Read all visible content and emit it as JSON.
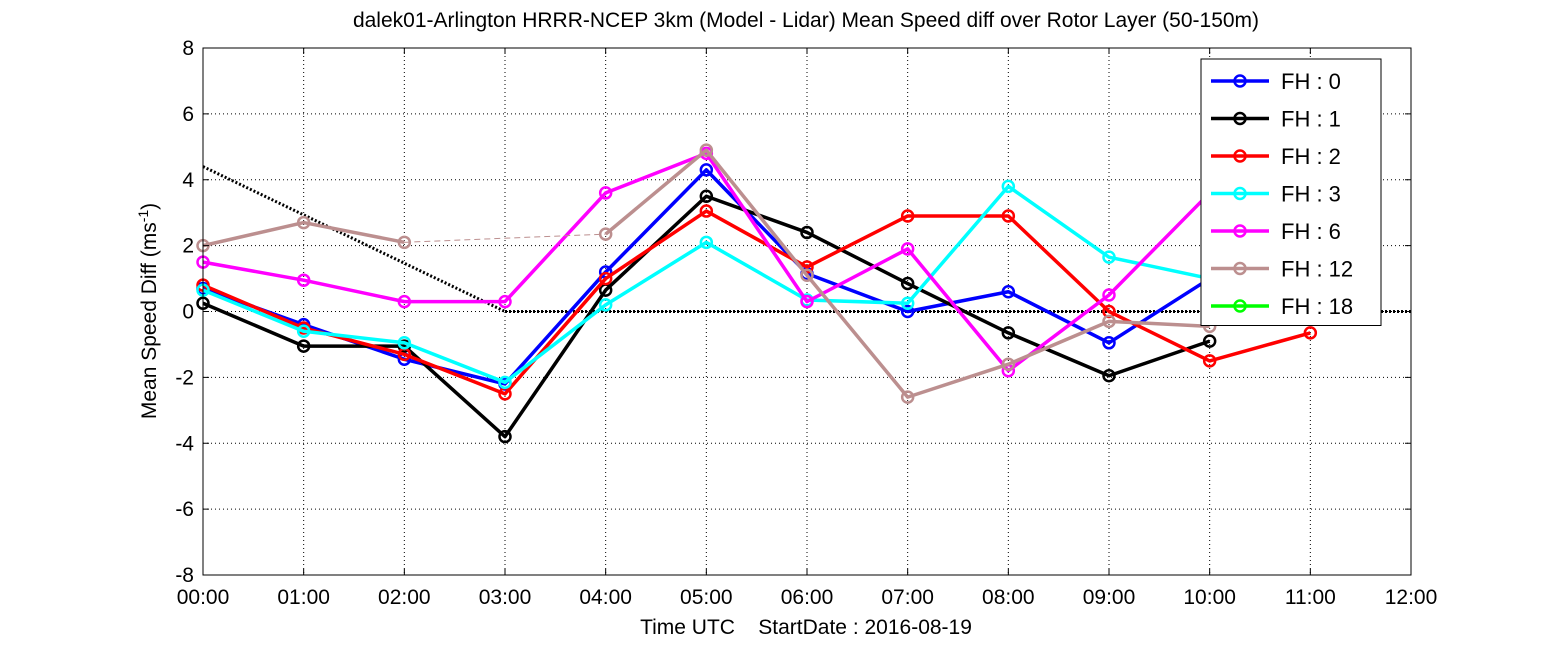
{
  "chart_data": {
    "type": "line",
    "title": "dalek01-Arlington HRRR-NCEP 3km (Model - Lidar) Mean Speed diff over Rotor Layer (50-150m)",
    "xlabel": "Time UTC    StartDate : 2016-08-19",
    "ylabel_main": "Mean Speed Diff (ms",
    "ylabel_sup": "-1",
    "ylabel_end": ")",
    "x_ticks": [
      "00:00",
      "01:00",
      "02:00",
      "03:00",
      "04:00",
      "05:00",
      "06:00",
      "07:00",
      "08:00",
      "09:00",
      "10:00",
      "11:00",
      "12:00"
    ],
    "y_ticks": [
      "-8",
      "-6",
      "-4",
      "-2",
      "0",
      "2",
      "4",
      "6",
      "8"
    ],
    "xlim": [
      0,
      12
    ],
    "ylim": [
      -8,
      8
    ],
    "grid": true,
    "legend_position": "top-right",
    "series": [
      {
        "name": "FH : 0",
        "color": "#0000ff",
        "points": [
          [
            0,
            0.7
          ],
          [
            1,
            -0.4
          ],
          [
            2,
            -1.45
          ],
          [
            3,
            -2.2
          ],
          [
            4,
            1.2
          ],
          [
            5,
            4.3
          ],
          [
            6,
            1.15
          ],
          [
            7,
            0.0
          ],
          [
            8,
            0.6
          ],
          [
            9,
            -0.95
          ],
          [
            10,
            1.0
          ]
        ]
      },
      {
        "name": "FH : 1",
        "color": "#000000",
        "points": [
          [
            0,
            0.25
          ],
          [
            1,
            -1.05
          ],
          [
            2,
            -1.05
          ],
          [
            3,
            -3.8
          ],
          [
            4,
            0.65
          ],
          [
            5,
            3.5
          ],
          [
            6,
            2.4
          ],
          [
            7,
            0.85
          ],
          [
            8,
            -0.65
          ],
          [
            9,
            -1.95
          ],
          [
            10,
            -0.9
          ]
        ]
      },
      {
        "name": "FH : 2",
        "color": "#ff0000",
        "points": [
          [
            0,
            0.8
          ],
          [
            1,
            -0.5
          ],
          [
            2,
            -1.3
          ],
          [
            3,
            -2.5
          ],
          [
            4,
            1.0
          ],
          [
            5,
            3.05
          ],
          [
            6,
            1.35
          ],
          [
            7,
            2.9
          ],
          [
            8,
            2.9
          ],
          [
            9,
            0.0
          ],
          [
            10,
            -1.5
          ],
          [
            11,
            -0.65
          ]
        ]
      },
      {
        "name": "FH : 3",
        "color": "#00ffff",
        "points": [
          [
            0,
            0.65
          ],
          [
            1,
            -0.6
          ],
          [
            2,
            -0.95
          ],
          [
            3,
            -2.15
          ],
          [
            4,
            0.2
          ],
          [
            5,
            2.1
          ],
          [
            6,
            0.35
          ],
          [
            7,
            0.25
          ],
          [
            8,
            3.8
          ],
          [
            9,
            1.65
          ],
          [
            10,
            1.0
          ]
        ]
      },
      {
        "name": "FH : 6",
        "color": "#ff00ff",
        "points": [
          [
            0,
            1.5
          ],
          [
            1,
            0.95
          ],
          [
            2,
            0.3
          ],
          [
            3,
            0.3
          ],
          [
            4,
            3.6
          ],
          [
            5,
            4.8
          ],
          [
            6,
            0.3
          ],
          [
            7,
            1.9
          ],
          [
            8,
            -1.8
          ],
          [
            9,
            0.5
          ],
          [
            10,
            3.6
          ]
        ]
      },
      {
        "name": "FH : 12",
        "color": "#bc8f8f",
        "points": [
          [
            0,
            2.0
          ],
          [
            1,
            2.7
          ],
          [
            2,
            2.1
          ],
          [
            4,
            2.35
          ],
          [
            5,
            4.9
          ],
          [
            6,
            1.1
          ],
          [
            7,
            -2.6
          ],
          [
            8,
            -1.6
          ],
          [
            9,
            -0.3
          ],
          [
            10,
            -0.45
          ]
        ],
        "gap_after_x": 2
      },
      {
        "name": "FH : 18",
        "color": "#00ff00",
        "points": []
      }
    ],
    "reference_lines": [
      {
        "style": "dotted",
        "color": "#000000",
        "points": [
          [
            0,
            4.4
          ],
          [
            3,
            0.0
          ]
        ]
      },
      {
        "style": "dotted",
        "color": "#000000",
        "points": [
          [
            3,
            0.0
          ],
          [
            12,
            0.0
          ]
        ]
      }
    ]
  }
}
